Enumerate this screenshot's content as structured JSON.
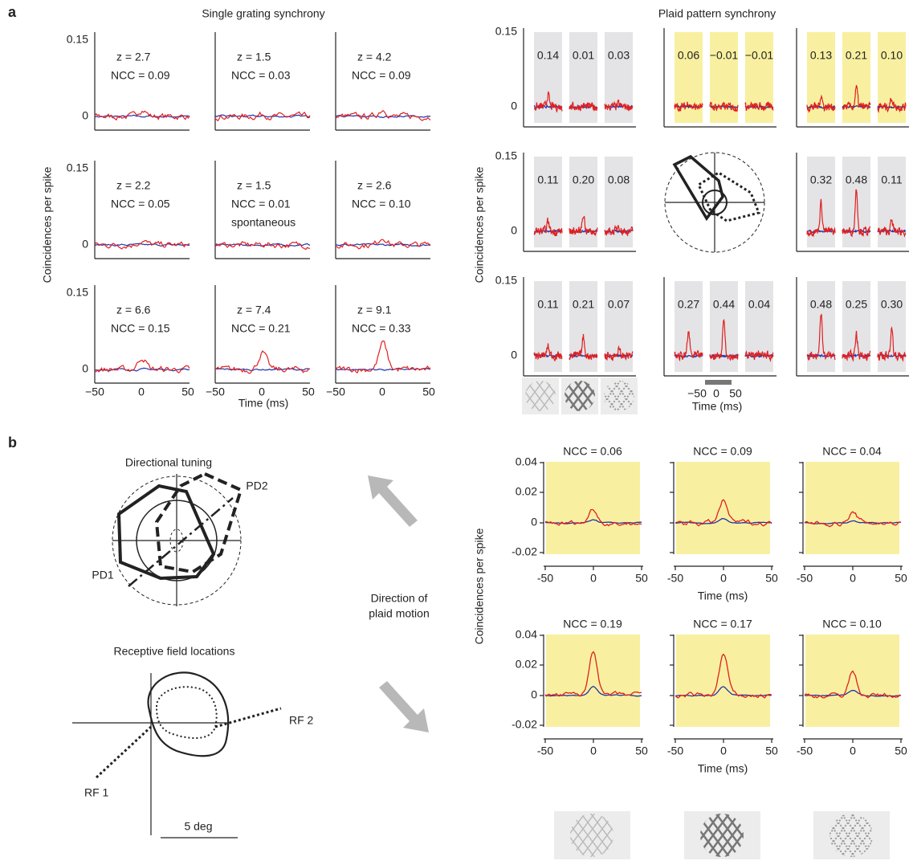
{
  "panel_a": {
    "label": "a",
    "left_title": "Single grating synchrony",
    "right_title": "Plaid pattern synchrony",
    "y_label": "Coincidences per spike",
    "y_ticks": [
      "0.15",
      "0"
    ],
    "x_ticks": [
      "−50",
      "0",
      "50"
    ],
    "x_label": "Time (ms)",
    "single": [
      {
        "z": "z  =  2.7",
        "ncc": "NCC = 0.09"
      },
      {
        "z": "z  =  1.5",
        "ncc": "NCC = 0.03"
      },
      {
        "z": "z  =  4.2",
        "ncc": "NCC = 0.09"
      },
      {
        "z": "z  =  2.2",
        "ncc": "NCC = 0.05"
      },
      {
        "z": "z  =  1.5",
        "ncc": "NCC = 0.01",
        "note": "spontaneous"
      },
      {
        "z": "z  =  2.6",
        "ncc": "NCC = 0.10"
      },
      {
        "z": "z  =  6.6",
        "ncc": "NCC = 0.15"
      },
      {
        "z": "z  =  7.4",
        "ncc": "NCC = 0.21"
      },
      {
        "z": "z  =  9.1",
        "ncc": "NCC = 0.33"
      }
    ],
    "plaid_rows": [
      [
        [
          "0.14",
          "0.01",
          "0.03"
        ],
        [
          "0.06",
          "−0.01",
          "−0.01"
        ],
        [
          "0.13",
          "0.21",
          "0.10"
        ]
      ],
      [
        [
          "0.11",
          "0.20",
          "0.08"
        ],
        [
          "0.32",
          "0.48",
          "0.11"
        ]
      ],
      [
        [
          "0.11",
          "0.21",
          "0.07"
        ],
        [
          "0.27",
          "0.44",
          "0.04"
        ],
        [
          "0.48",
          "0.25",
          "0.30"
        ]
      ]
    ],
    "scale_ticks": [
      "−50",
      "0",
      "50"
    ],
    "scale_label": "Time (ms)"
  },
  "panel_b": {
    "label": "b",
    "tuning_title": "Directional tuning",
    "pd1": "PD1",
    "pd2": "PD2",
    "direction": [
      "Direction of",
      "plaid motion"
    ],
    "rf_title": "Receptive field locations",
    "rf1": "RF 1",
    "rf2": "RF 2",
    "scale": "5 deg",
    "y_label": "Coincidences per spike",
    "y_ticks": [
      "0.04",
      "0.02",
      "0",
      "-0.02"
    ],
    "x_ticks": [
      "-50",
      "0",
      "50"
    ],
    "x_label": "Time (ms)",
    "ncc": [
      "NCC = 0.06",
      "NCC = 0.09",
      "NCC = 0.04",
      "NCC = 0.19",
      "NCC = 0.17",
      "NCC = 0.10"
    ]
  }
}
